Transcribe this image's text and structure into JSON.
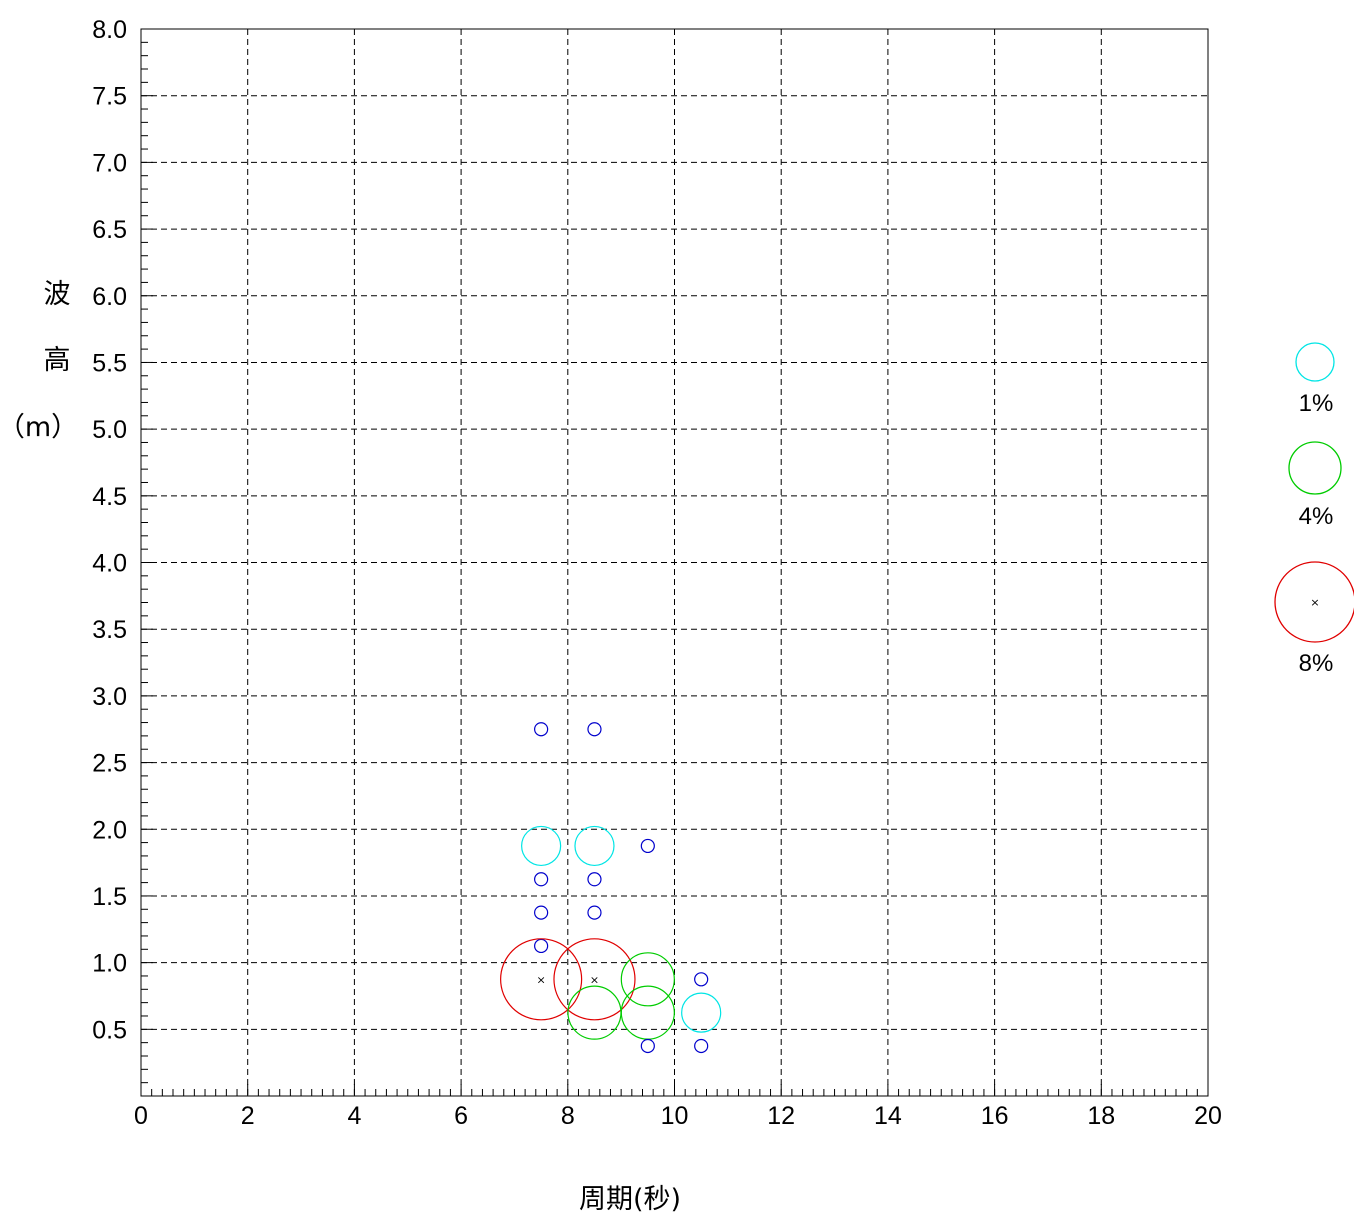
{
  "chart_data": {
    "type": "scatter",
    "xlabel": "周期(秒)",
    "ylabel_chars": [
      "波",
      "高",
      "（m）"
    ],
    "xlim": [
      0,
      20
    ],
    "ylim": [
      0,
      8
    ],
    "x_ticks": [
      "0",
      "2",
      "4",
      "6",
      "8",
      "10",
      "12",
      "14",
      "16",
      "18",
      "20"
    ],
    "y_ticks": [
      "0.5",
      "1.0",
      "1.5",
      "2.0",
      "2.5",
      "3.0",
      "3.5",
      "4.0",
      "4.5",
      "5.0",
      "5.5",
      "6.0",
      "6.5",
      "7.0",
      "7.5",
      "8.0"
    ],
    "grid": true,
    "colors": {
      "cyan": "#00e5e5",
      "green": "#00cc00",
      "red": "#e00000",
      "blue": "#0000cc",
      "grid": "#000000"
    },
    "legend": {
      "position": "right",
      "entries": [
        {
          "label": "1%",
          "color": "#00e5e5",
          "size_pct": 1
        },
        {
          "label": "4%",
          "color": "#00cc00",
          "size_pct": 4
        },
        {
          "label": "8%",
          "color": "#e00000",
          "size_pct": 8
        }
      ]
    },
    "points": [
      {
        "x": 7.5,
        "y": 2.75,
        "frequency_class": "small",
        "color": "#0000cc"
      },
      {
        "x": 8.5,
        "y": 2.75,
        "frequency_class": "small",
        "color": "#0000cc"
      },
      {
        "x": 7.5,
        "y": 1.875,
        "frequency_class": "1%",
        "color": "#00e5e5"
      },
      {
        "x": 8.5,
        "y": 1.875,
        "frequency_class": "1%",
        "color": "#00e5e5"
      },
      {
        "x": 9.5,
        "y": 1.875,
        "frequency_class": "small",
        "color": "#0000cc"
      },
      {
        "x": 7.5,
        "y": 1.625,
        "frequency_class": "small",
        "color": "#0000cc"
      },
      {
        "x": 8.5,
        "y": 1.625,
        "frequency_class": "small",
        "color": "#0000cc"
      },
      {
        "x": 7.5,
        "y": 1.375,
        "frequency_class": "small",
        "color": "#0000cc"
      },
      {
        "x": 8.5,
        "y": 1.375,
        "frequency_class": "small",
        "color": "#0000cc"
      },
      {
        "x": 7.5,
        "y": 1.125,
        "frequency_class": "small",
        "color": "#0000cc"
      },
      {
        "x": 7.5,
        "y": 0.875,
        "frequency_class": "8%",
        "color": "#e00000"
      },
      {
        "x": 8.5,
        "y": 0.875,
        "frequency_class": "8%",
        "color": "#e00000"
      },
      {
        "x": 9.5,
        "y": 0.875,
        "frequency_class": "4%",
        "color": "#00cc00"
      },
      {
        "x": 10.5,
        "y": 0.875,
        "frequency_class": "small",
        "color": "#0000cc"
      },
      {
        "x": 8.5,
        "y": 0.625,
        "frequency_class": "4%",
        "color": "#00cc00"
      },
      {
        "x": 9.5,
        "y": 0.625,
        "frequency_class": "4%",
        "color": "#00cc00"
      },
      {
        "x": 10.5,
        "y": 0.625,
        "frequency_class": "1%",
        "color": "#00e5e5"
      },
      {
        "x": 9.5,
        "y": 0.375,
        "frequency_class": "small",
        "color": "#0000cc"
      },
      {
        "x": 10.5,
        "y": 0.375,
        "frequency_class": "small",
        "color": "#0000cc"
      }
    ]
  }
}
